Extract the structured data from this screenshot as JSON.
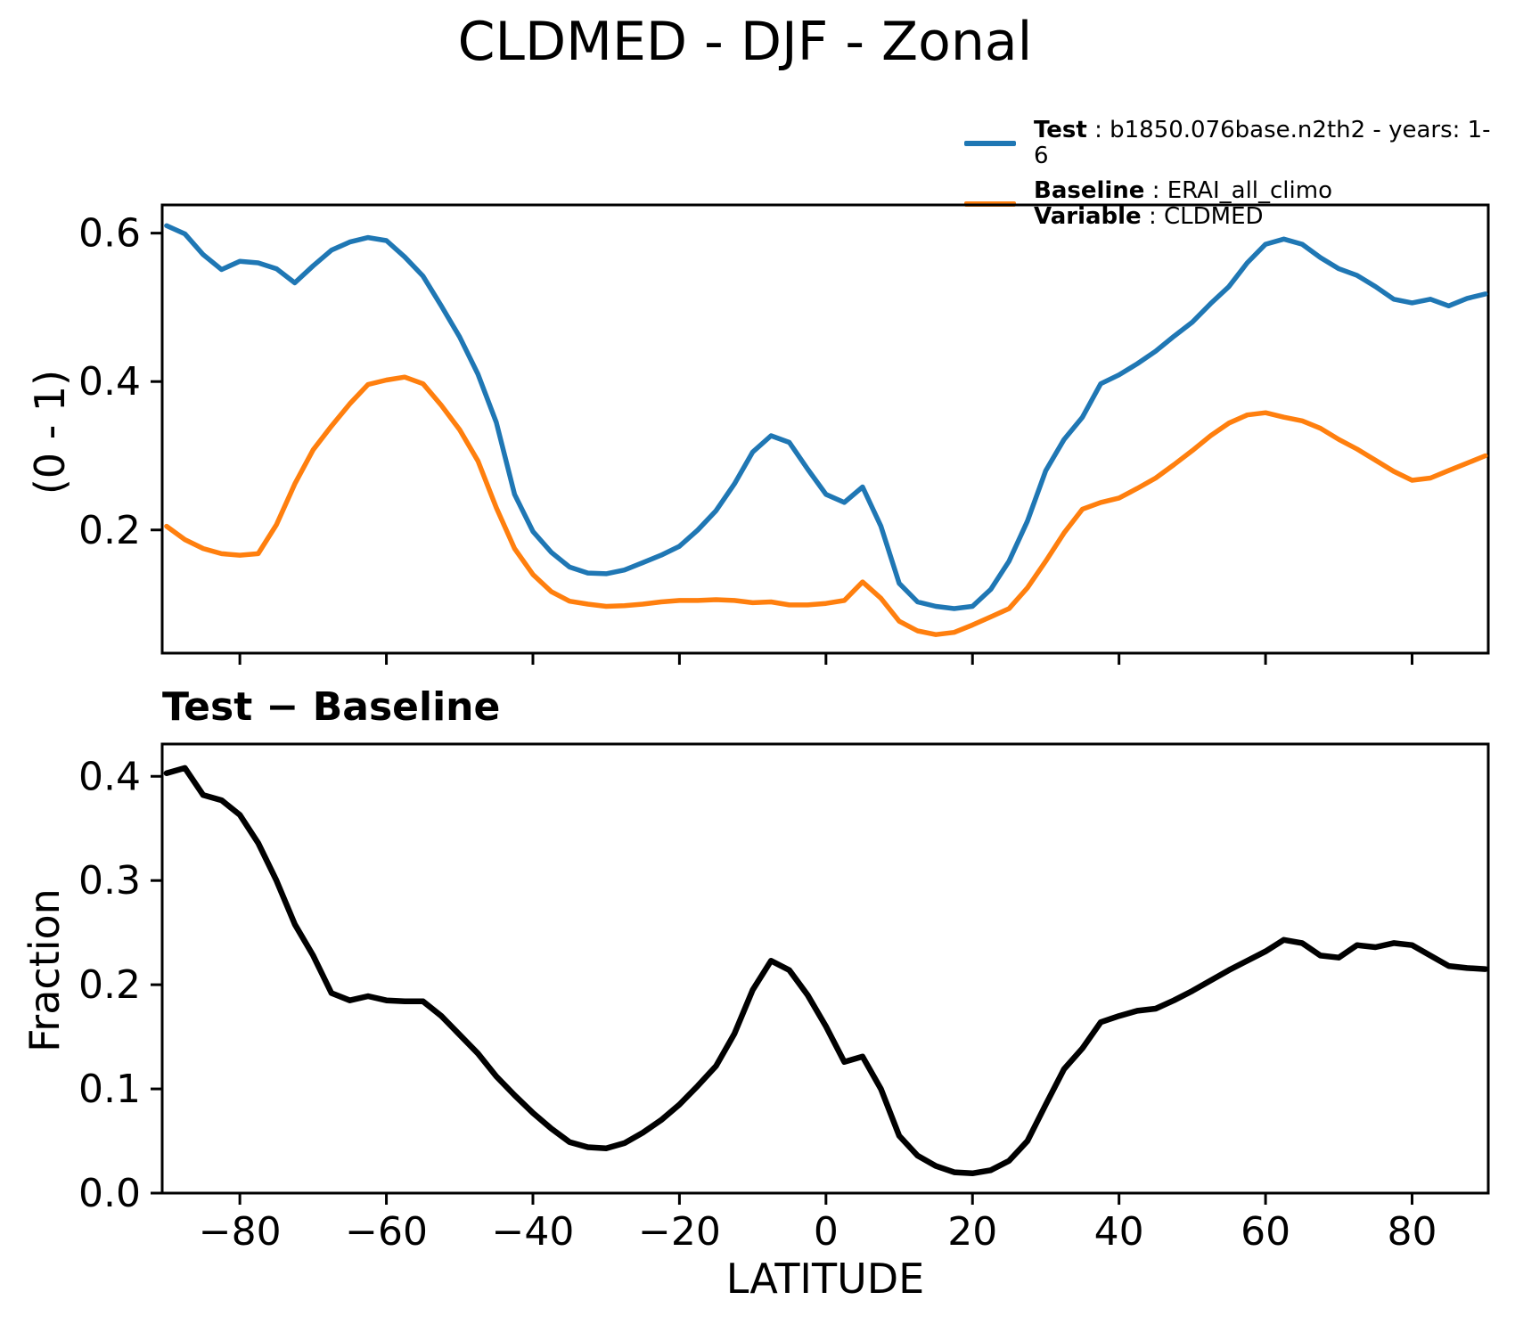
{
  "title": "CLDMED - DJF - Zonal",
  "legend": {
    "test": {
      "bold": "Test",
      "rest": " : b1850.076base.n2th2 - years: 1-6",
      "color": "#1f77b4"
    },
    "baseline": {
      "bold": "Baseline",
      "rest": " : ERAI_all_climo",
      "color": "#ff7f0e"
    },
    "variable": {
      "bold": "Variable",
      "rest": " : CLDMED"
    }
  },
  "chart_data": [
    {
      "type": "line",
      "panel": "top",
      "ylabel": "(0 - 1)",
      "yticks": [
        0.2,
        0.4,
        0.6
      ],
      "ylim": [
        0.034,
        0.638
      ],
      "xlim": [
        -90.6,
        90.4
      ],
      "xticks": [
        -80,
        -60,
        -40,
        -20,
        0,
        20,
        40,
        60,
        80
      ],
      "show_xtick_labels": false,
      "grid": false,
      "legend_position": "above upper right",
      "x": [
        -90,
        -87.5,
        -85,
        -82.5,
        -80,
        -77.5,
        -75,
        -72.5,
        -70,
        -67.5,
        -65,
        -62.5,
        -60,
        -57.5,
        -55,
        -52.5,
        -50,
        -47.5,
        -45,
        -42.5,
        -40,
        -37.5,
        -35,
        -32.5,
        -30,
        -27.5,
        -25,
        -22.5,
        -20,
        -17.5,
        -15,
        -12.5,
        -10,
        -7.5,
        -5,
        -2.5,
        0,
        2.5,
        5,
        7.5,
        10,
        12.5,
        15,
        17.5,
        20,
        22.5,
        25,
        27.5,
        30,
        32.5,
        35,
        37.5,
        40,
        42.5,
        45,
        47.5,
        50,
        52.5,
        55,
        57.5,
        60,
        62.5,
        65,
        67.5,
        70,
        72.5,
        75,
        77.5,
        80,
        82.5,
        85,
        87.5,
        90
      ],
      "series": [
        {
          "name": "Test",
          "color": "#1f77b4",
          "values": [
            0.61,
            0.599,
            0.571,
            0.551,
            0.562,
            0.56,
            0.552,
            0.533,
            0.556,
            0.577,
            0.588,
            0.594,
            0.59,
            0.568,
            0.542,
            0.502,
            0.46,
            0.41,
            0.345,
            0.248,
            0.198,
            0.17,
            0.15,
            0.142,
            0.141,
            0.146,
            0.156,
            0.166,
            0.178,
            0.2,
            0.226,
            0.262,
            0.305,
            0.327,
            0.318,
            0.282,
            0.248,
            0.237,
            0.258,
            0.205,
            0.128,
            0.103,
            0.097,
            0.094,
            0.097,
            0.12,
            0.158,
            0.212,
            0.28,
            0.322,
            0.352,
            0.397,
            0.409,
            0.424,
            0.441,
            0.461,
            0.48,
            0.505,
            0.528,
            0.56,
            0.585,
            0.592,
            0.585,
            0.567,
            0.552,
            0.543,
            0.528,
            0.511,
            0.506,
            0.511,
            0.502,
            0.512,
            0.518
          ]
        },
        {
          "name": "Baseline",
          "color": "#ff7f0e",
          "values": [
            0.205,
            0.187,
            0.175,
            0.168,
            0.166,
            0.168,
            0.207,
            0.262,
            0.308,
            0.34,
            0.37,
            0.396,
            0.402,
            0.406,
            0.397,
            0.368,
            0.335,
            0.293,
            0.23,
            0.175,
            0.14,
            0.117,
            0.104,
            0.1,
            0.097,
            0.098,
            0.1,
            0.103,
            0.105,
            0.105,
            0.106,
            0.105,
            0.102,
            0.103,
            0.099,
            0.099,
            0.101,
            0.105,
            0.13,
            0.108,
            0.077,
            0.064,
            0.059,
            0.062,
            0.072,
            0.083,
            0.094,
            0.122,
            0.158,
            0.196,
            0.228,
            0.237,
            0.243,
            0.256,
            0.27,
            0.288,
            0.307,
            0.327,
            0.344,
            0.355,
            0.358,
            0.352,
            0.347,
            0.337,
            0.322,
            0.309,
            0.294,
            0.279,
            0.267,
            0.27,
            0.28,
            0.29,
            0.3
          ]
        }
      ]
    },
    {
      "type": "line",
      "panel": "bottom",
      "subtitle": "Test − Baseline",
      "ylabel": "Fraction",
      "xlabel": "LATITUDE",
      "yticks": [
        0.0,
        0.1,
        0.2,
        0.3,
        0.4
      ],
      "ylim": [
        0.0,
        0.431
      ],
      "xlim": [
        -90.6,
        90.4
      ],
      "xticks": [
        -80,
        -60,
        -40,
        -20,
        0,
        20,
        40,
        60,
        80
      ],
      "show_xtick_labels": true,
      "grid": false,
      "x": [
        -90,
        -87.5,
        -85,
        -82.5,
        -80,
        -77.5,
        -75,
        -72.5,
        -70,
        -67.5,
        -65,
        -62.5,
        -60,
        -57.5,
        -55,
        -52.5,
        -50,
        -47.5,
        -45,
        -42.5,
        -40,
        -37.5,
        -35,
        -32.5,
        -30,
        -27.5,
        -25,
        -22.5,
        -20,
        -17.5,
        -15,
        -12.5,
        -10,
        -7.5,
        -5,
        -2.5,
        0,
        2.5,
        5,
        7.5,
        10,
        12.5,
        15,
        17.5,
        20,
        22.5,
        25,
        27.5,
        30,
        32.5,
        35,
        37.5,
        40,
        42.5,
        45,
        47.5,
        50,
        52.5,
        55,
        57.5,
        60,
        62.5,
        65,
        67.5,
        70,
        72.5,
        75,
        77.5,
        80,
        82.5,
        85,
        87.5,
        90
      ],
      "series": [
        {
          "name": "Test − Baseline",
          "color": "#000000",
          "values": [
            0.403,
            0.408,
            0.382,
            0.377,
            0.363,
            0.336,
            0.3,
            0.258,
            0.228,
            0.192,
            0.185,
            0.189,
            0.185,
            0.184,
            0.184,
            0.17,
            0.152,
            0.134,
            0.112,
            0.094,
            0.077,
            0.062,
            0.049,
            0.044,
            0.043,
            0.048,
            0.058,
            0.07,
            0.085,
            0.103,
            0.122,
            0.153,
            0.195,
            0.223,
            0.214,
            0.19,
            0.16,
            0.126,
            0.131,
            0.1,
            0.055,
            0.036,
            0.026,
            0.02,
            0.019,
            0.022,
            0.031,
            0.05,
            0.085,
            0.119,
            0.139,
            0.164,
            0.17,
            0.175,
            0.177,
            0.185,
            0.194,
            0.204,
            0.214,
            0.223,
            0.232,
            0.243,
            0.24,
            0.228,
            0.226,
            0.238,
            0.236,
            0.24,
            0.238,
            0.228,
            0.218,
            0.216,
            0.215
          ]
        }
      ]
    }
  ]
}
